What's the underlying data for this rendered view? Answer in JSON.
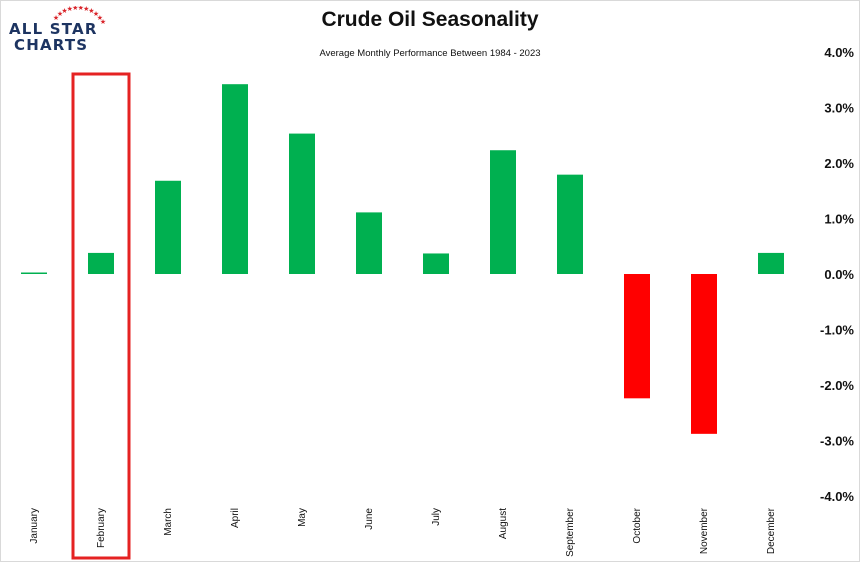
{
  "logo": {
    "line1": "ALL STAR",
    "line2": "CHARTS",
    "star_color": "#d9252b",
    "text_color": "#1d3461"
  },
  "title": "Crude Oil Seasonality",
  "subtitle": "Average Monthly Performance Between 1984 - 2023",
  "colors": {
    "positive": "#00b050",
    "negative": "#ff0000",
    "highlight_box": "#e52222"
  },
  "highlight": "February",
  "chart_data": {
    "type": "bar",
    "title": "Crude Oil Seasonality",
    "subtitle": "Average Monthly Performance Between 1984 - 2023",
    "categories": [
      "January",
      "February",
      "March",
      "April",
      "May",
      "June",
      "July",
      "August",
      "September",
      "October",
      "November",
      "December"
    ],
    "values": [
      0.02,
      0.38,
      1.68,
      3.42,
      2.53,
      1.11,
      0.37,
      2.23,
      1.79,
      -2.24,
      -2.88,
      0.38
    ],
    "unit": "%",
    "ylim": [
      -4.0,
      4.0
    ],
    "y_ticks": [
      4.0,
      3.0,
      2.0,
      1.0,
      0.0,
      -1.0,
      -2.0,
      -3.0,
      -4.0
    ],
    "y_tick_labels": [
      "4.0%",
      "3.0%",
      "2.0%",
      "1.0%",
      "0.0%",
      "-1.0%",
      "-2.0%",
      "-3.0%",
      "-4.0%"
    ],
    "y_axis_position": "right",
    "grid": false,
    "legend": "none"
  }
}
